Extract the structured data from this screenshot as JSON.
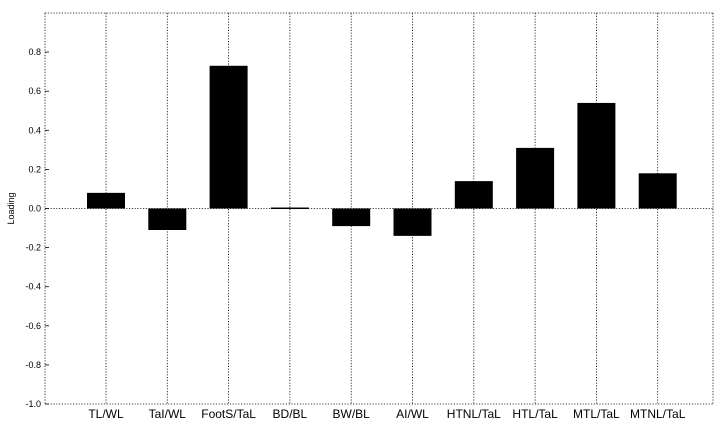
{
  "chart_data": {
    "type": "bar",
    "title": "",
    "xlabel": "",
    "ylabel": "Loading",
    "categories": [
      "TL/WL",
      "TaI/WL",
      "FootS/TaL",
      "BD/BL",
      "BW/BL",
      "AI/WL",
      "HTNL/TaL",
      "HTL/TaL",
      "MTL/TaL",
      "MTNL/TaL"
    ],
    "values": [
      0.08,
      -0.11,
      0.73,
      0.005,
      -0.09,
      -0.14,
      0.14,
      0.31,
      0.54,
      0.18
    ],
    "ylim": [
      -1.0,
      1.0
    ],
    "yticks": [
      -1.0,
      -0.8,
      -0.6,
      -0.4,
      -0.2,
      0.0,
      0.2,
      0.4,
      0.6,
      0.8
    ],
    "ytick_labels": [
      "-1.0",
      "-0.8",
      "-0.6",
      "-0.4",
      "-0.2",
      "0.0",
      "0.2",
      "0.4",
      "0.6",
      "0.8"
    ],
    "grid": true,
    "bar_color": "#000000"
  }
}
